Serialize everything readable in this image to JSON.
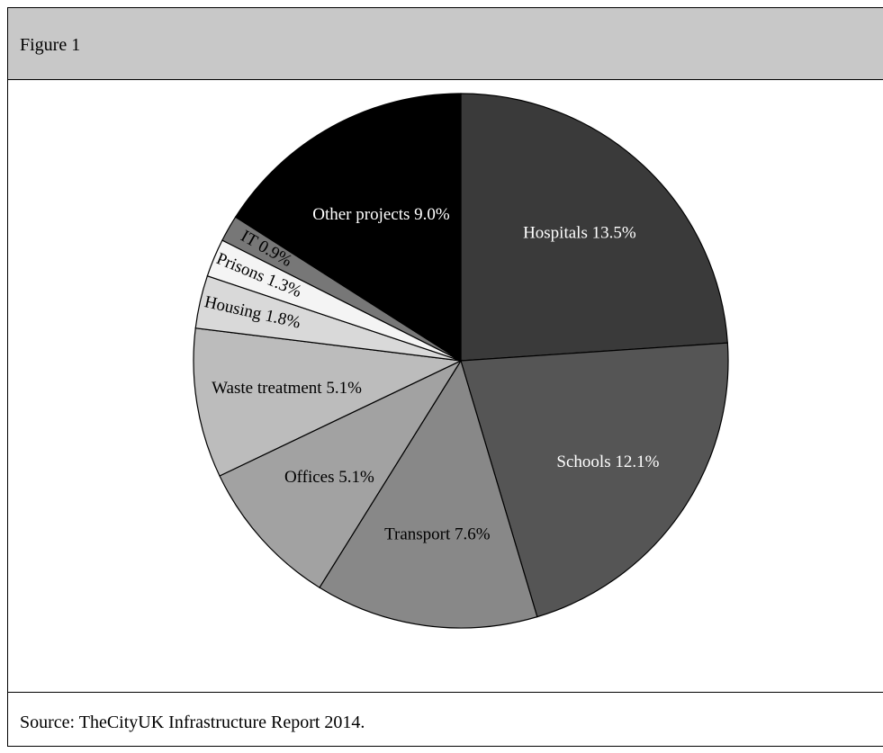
{
  "figure": {
    "label": "Figure 1"
  },
  "source": {
    "text": "Source: TheCityUK Infrastructure Report 2014."
  },
  "chart_data": {
    "type": "pie",
    "title": "",
    "slices": [
      {
        "label": "Hospitals",
        "value": 13.5,
        "display": "Hospitals 13.5%",
        "color": "#3a3a3a",
        "text_color": "#ffffff"
      },
      {
        "label": "Schools",
        "value": 12.1,
        "display": "Schools 12.1%",
        "color": "#555555",
        "text_color": "#ffffff"
      },
      {
        "label": "Transport",
        "value": 7.6,
        "display": "Transport 7.6%",
        "color": "#888888",
        "text_color": "#000000"
      },
      {
        "label": "Offices",
        "value": 5.1,
        "display": "Offices 5.1%",
        "color": "#a2a2a2",
        "text_color": "#000000"
      },
      {
        "label": "Waste treatment",
        "value": 5.1,
        "display": "Waste treatment 5.1%",
        "color": "#bcbcbc",
        "text_color": "#000000"
      },
      {
        "label": "Housing",
        "value": 1.8,
        "display": "Housing 1.8%",
        "color": "#d9d9d9",
        "text_color": "#000000"
      },
      {
        "label": "Prisons",
        "value": 1.3,
        "display": "Prisons 1.3%",
        "color": "#f4f4f4",
        "text_color": "#000000"
      },
      {
        "label": "IT",
        "value": 0.9,
        "display": "IT 0.9%",
        "color": "#777777",
        "text_color": "#000000"
      },
      {
        "label": "Other projects",
        "value": 9.0,
        "display": "Other projects 9.0%",
        "color": "#000000",
        "text_color": "#ffffff"
      }
    ]
  }
}
